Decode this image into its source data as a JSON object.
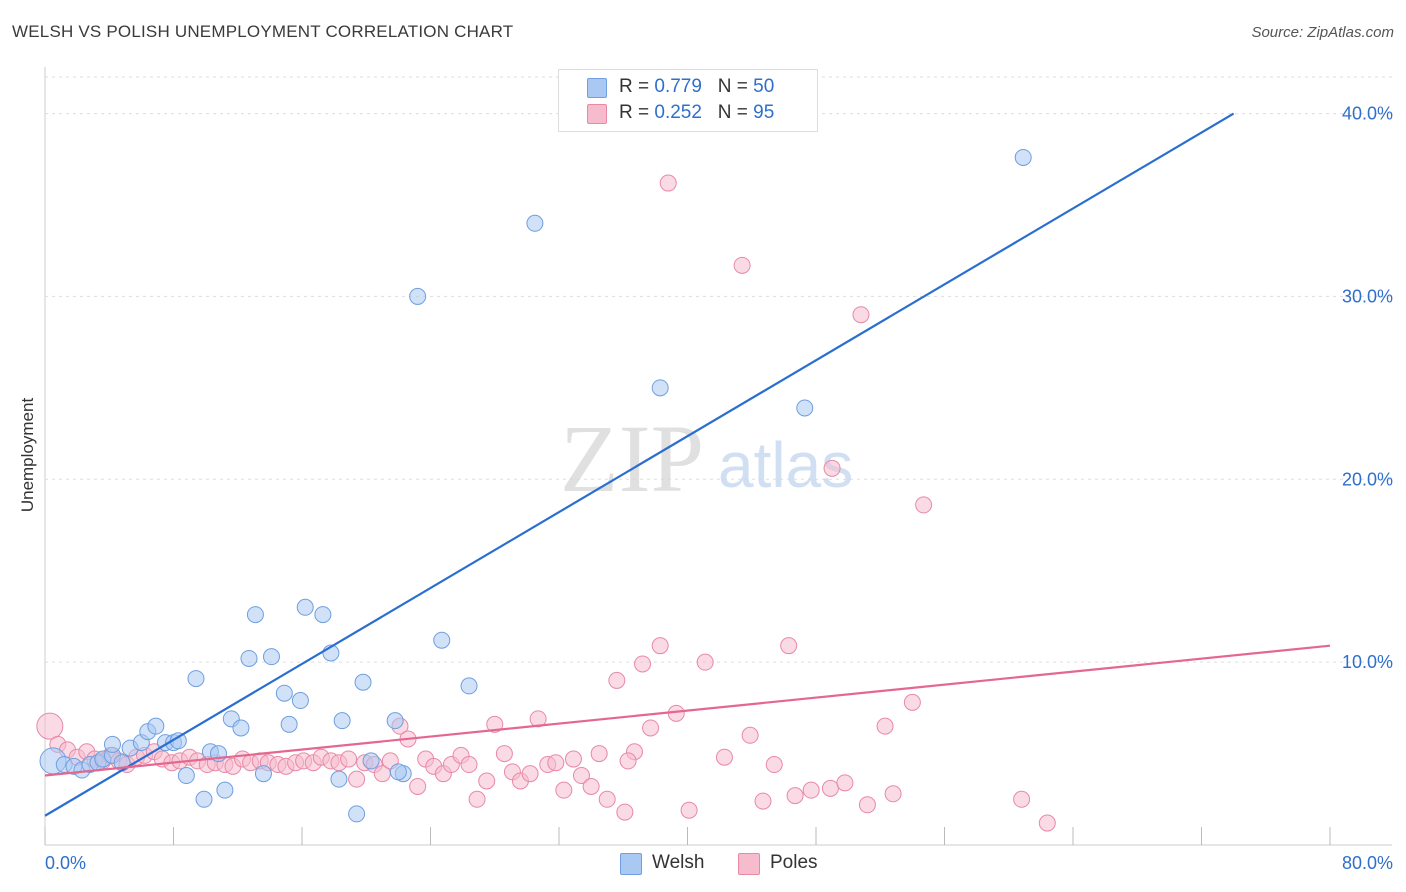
{
  "header": {
    "title": "WELSH VS POLISH UNEMPLOYMENT CORRELATION CHART",
    "source": "Source: ZipAtlas.com"
  },
  "watermark": {
    "zip": "ZIP",
    "atlas": "atlas"
  },
  "legend_top": [
    {
      "r_label": "R = ",
      "r_value": "0.779",
      "n_label": "N = ",
      "n_value": "50",
      "color": "#a9c8f2"
    },
    {
      "r_label": "R = ",
      "r_value": "0.252",
      "n_label": "N = ",
      "n_value": "95",
      "color": "#f6bccd"
    }
  ],
  "legend_bottom": [
    {
      "label": "Welsh",
      "color": "#a9c8f2"
    },
    {
      "label": "Poles",
      "color": "#f6bccd"
    }
  ],
  "colors": {
    "welsh_fill": "#a9c8f2",
    "welsh_stroke": "#6f9fdf",
    "welsh_line": "#2a6fd0",
    "poles_fill": "#f6bccd",
    "poles_stroke": "#e889a6",
    "poles_line": "#e4678f",
    "tick_label": "#2f6fcb",
    "grid": "#dddddd"
  },
  "chart_data": {
    "type": "scatter",
    "title": "WELSH VS POLISH UNEMPLOYMENT CORRELATION CHART",
    "ylabel": "Unemployment",
    "xlabel": "",
    "xlim": [
      0,
      80
    ],
    "ylim": [
      0,
      42
    ],
    "x_tick_labels": [
      "0.0%",
      "80.0%"
    ],
    "y_ticks": [
      10,
      20,
      30,
      40
    ],
    "y_tick_labels": [
      "10.0%",
      "20.0%",
      "30.0%",
      "40.0%"
    ],
    "grid": true,
    "legend": "top-center",
    "series": [
      {
        "name": "Welsh",
        "r": 0.779,
        "n": 50,
        "trend": {
          "x": [
            0,
            74
          ],
          "y": [
            1.6,
            40.0
          ]
        },
        "points": [
          [
            0.5,
            4.6
          ],
          [
            1.2,
            4.4
          ],
          [
            1.8,
            4.3
          ],
          [
            2.3,
            4.1
          ],
          [
            2.8,
            4.4
          ],
          [
            3.3,
            4.5
          ],
          [
            3.6,
            4.7
          ],
          [
            4.2,
            4.9
          ],
          [
            4.2,
            5.5
          ],
          [
            4.8,
            4.5
          ],
          [
            5.3,
            5.3
          ],
          [
            6.0,
            5.6
          ],
          [
            6.4,
            6.2
          ],
          [
            6.9,
            6.5
          ],
          [
            7.5,
            5.6
          ],
          [
            8.0,
            5.6
          ],
          [
            8.3,
            5.7
          ],
          [
            8.8,
            3.8
          ],
          [
            9.4,
            9.1
          ],
          [
            9.9,
            2.5
          ],
          [
            10.3,
            5.1
          ],
          [
            10.8,
            5.0
          ],
          [
            11.2,
            3.0
          ],
          [
            11.6,
            6.9
          ],
          [
            12.2,
            6.4
          ],
          [
            12.7,
            10.2
          ],
          [
            13.1,
            12.6
          ],
          [
            13.6,
            3.9
          ],
          [
            14.1,
            10.3
          ],
          [
            14.9,
            8.3
          ],
          [
            15.2,
            6.6
          ],
          [
            15.9,
            7.9
          ],
          [
            16.2,
            13.0
          ],
          [
            17.3,
            12.6
          ],
          [
            17.8,
            10.5
          ],
          [
            18.3,
            3.6
          ],
          [
            18.5,
            6.8
          ],
          [
            19.4,
            1.7
          ],
          [
            19.8,
            8.9
          ],
          [
            20.3,
            4.6
          ],
          [
            21.8,
            6.8
          ],
          [
            22.3,
            3.9
          ],
          [
            23.2,
            30.0
          ],
          [
            24.7,
            11.2
          ],
          [
            26.4,
            8.7
          ],
          [
            30.5,
            34.0
          ],
          [
            38.3,
            25.0
          ],
          [
            47.3,
            23.9
          ],
          [
            60.9,
            37.6
          ],
          [
            22.0,
            4.0
          ]
        ]
      },
      {
        "name": "Poles",
        "r": 0.252,
        "n": 95,
        "trend": {
          "x": [
            0,
            80
          ],
          "y": [
            3.8,
            10.9
          ]
        },
        "points": [
          [
            0.3,
            6.5
          ],
          [
            0.8,
            5.5
          ],
          [
            1.4,
            5.2
          ],
          [
            2.0,
            4.8
          ],
          [
            2.6,
            5.1
          ],
          [
            3.1,
            4.7
          ],
          [
            3.6,
            4.6
          ],
          [
            4.1,
            4.9
          ],
          [
            4.6,
            4.6
          ],
          [
            5.1,
            4.4
          ],
          [
            5.7,
            4.8
          ],
          [
            6.2,
            4.9
          ],
          [
            6.8,
            5.1
          ],
          [
            7.3,
            4.7
          ],
          [
            7.9,
            4.5
          ],
          [
            8.4,
            4.6
          ],
          [
            9.0,
            4.8
          ],
          [
            9.5,
            4.6
          ],
          [
            10.1,
            4.4
          ],
          [
            10.6,
            4.5
          ],
          [
            11.2,
            4.4
          ],
          [
            11.7,
            4.3
          ],
          [
            12.3,
            4.7
          ],
          [
            12.8,
            4.5
          ],
          [
            13.4,
            4.6
          ],
          [
            13.9,
            4.5
          ],
          [
            14.5,
            4.4
          ],
          [
            15.0,
            4.3
          ],
          [
            15.6,
            4.5
          ],
          [
            16.1,
            4.6
          ],
          [
            16.7,
            4.5
          ],
          [
            17.2,
            4.8
          ],
          [
            17.8,
            4.6
          ],
          [
            18.3,
            4.5
          ],
          [
            18.9,
            4.7
          ],
          [
            19.4,
            3.6
          ],
          [
            19.9,
            4.5
          ],
          [
            20.5,
            4.4
          ],
          [
            21.0,
            3.9
          ],
          [
            21.5,
            4.6
          ],
          [
            22.1,
            6.5
          ],
          [
            22.6,
            5.8
          ],
          [
            23.2,
            3.2
          ],
          [
            23.7,
            4.7
          ],
          [
            24.2,
            4.3
          ],
          [
            24.8,
            3.9
          ],
          [
            25.3,
            4.4
          ],
          [
            25.9,
            4.9
          ],
          [
            26.4,
            4.4
          ],
          [
            26.9,
            2.5
          ],
          [
            27.5,
            3.5
          ],
          [
            28.0,
            6.6
          ],
          [
            28.6,
            5.0
          ],
          [
            29.1,
            4.0
          ],
          [
            29.6,
            3.5
          ],
          [
            30.2,
            3.9
          ],
          [
            30.7,
            6.9
          ],
          [
            31.3,
            4.4
          ],
          [
            31.8,
            4.5
          ],
          [
            32.3,
            3.0
          ],
          [
            32.9,
            4.7
          ],
          [
            33.4,
            3.8
          ],
          [
            34.0,
            3.2
          ],
          [
            34.5,
            5.0
          ],
          [
            35.0,
            2.5
          ],
          [
            35.6,
            9.0
          ],
          [
            36.1,
            1.8
          ],
          [
            36.7,
            5.1
          ],
          [
            37.2,
            9.9
          ],
          [
            37.7,
            6.4
          ],
          [
            38.3,
            10.9
          ],
          [
            38.8,
            36.2
          ],
          [
            39.3,
            7.2
          ],
          [
            40.1,
            1.9
          ],
          [
            41.1,
            10.0
          ],
          [
            42.3,
            4.8
          ],
          [
            43.4,
            31.7
          ],
          [
            43.9,
            6.0
          ],
          [
            44.7,
            2.4
          ],
          [
            45.4,
            4.4
          ],
          [
            46.3,
            10.9
          ],
          [
            46.7,
            2.7
          ],
          [
            47.7,
            3.0
          ],
          [
            48.9,
            3.1
          ],
          [
            49.8,
            3.4
          ],
          [
            50.8,
            29.0
          ],
          [
            51.2,
            2.2
          ],
          [
            52.3,
            6.5
          ],
          [
            52.8,
            2.8
          ],
          [
            54.0,
            7.8
          ],
          [
            54.7,
            18.6
          ],
          [
            60.8,
            2.5
          ],
          [
            62.4,
            1.2
          ],
          [
            49.0,
            20.6
          ],
          [
            36.3,
            4.6
          ]
        ]
      }
    ]
  }
}
